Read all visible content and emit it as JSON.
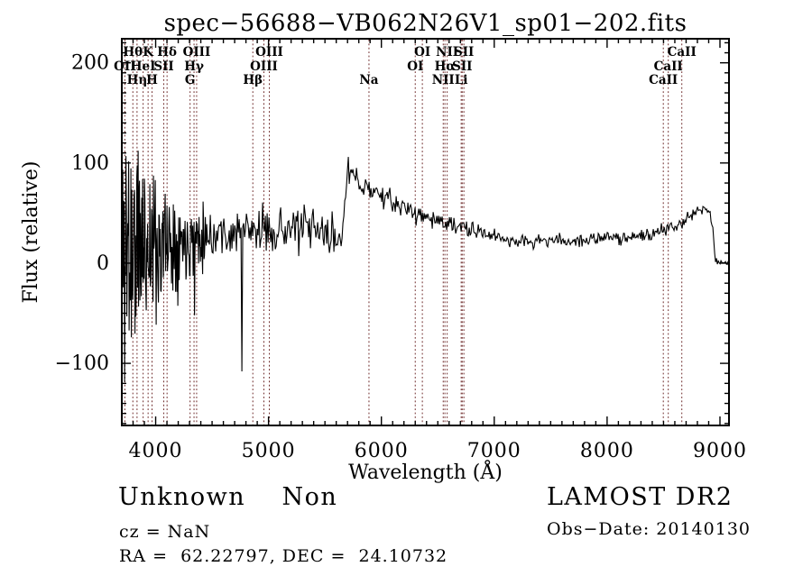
{
  "title": "spec−56688−VB062N26V1_sp01−202.fits",
  "footer": {
    "class_label": "Unknown    Non",
    "cz": "cz = NaN",
    "radec": "RA =  62.22797, DEC =  24.10732",
    "survey": "LAMOST DR2",
    "obs_date": "Obs−Date: 20140130"
  },
  "chart_data": {
    "type": "line",
    "title": "spec−56688−VB062N26V1_sp01−202.fits",
    "xlabel": "Wavelength (Å)",
    "ylabel": "Flux (relative)",
    "xlim": [
      3700,
      9080
    ],
    "ylim": [
      -162,
      224
    ],
    "x_ticks": [
      4000,
      5000,
      6000,
      7000,
      8000,
      9000
    ],
    "y_ticks": [
      -100,
      0,
      100,
      200
    ],
    "x_minor_step": 100,
    "y_minor_step": 10,
    "grid": false,
    "line_color": "#000000",
    "marker_line_color": "#6e2a2a",
    "spectral_lines": [
      {
        "label": "Hθ",
        "wavelength": 3798,
        "row": 1
      },
      {
        "label": "K",
        "wavelength": 3933,
        "row": 1
      },
      {
        "label": "Hδ",
        "wavelength": 4101,
        "row": 1
      },
      {
        "label": "OIII",
        "wavelength": 4363,
        "row": 1
      },
      {
        "label": "OIII",
        "wavelength": 5007,
        "row": 1
      },
      {
        "label": "OI",
        "wavelength": 6363,
        "row": 1
      },
      {
        "label": "NII",
        "wavelength": 6583,
        "row": 1
      },
      {
        "label": "SII",
        "wavelength": 6731,
        "row": 1
      },
      {
        "label": "CaII",
        "wavelength": 8662,
        "row": 1
      },
      {
        "label": "OII",
        "wavelength": 3727,
        "row": 2
      },
      {
        "label": "HeI",
        "wavelength": 3889,
        "row": 2
      },
      {
        "label": "SII",
        "wavelength": 4072,
        "row": 2
      },
      {
        "label": "Hγ",
        "wavelength": 4340,
        "row": 2
      },
      {
        "label": "OIII",
        "wavelength": 4959,
        "row": 2
      },
      {
        "label": "OI",
        "wavelength": 6300,
        "row": 2
      },
      {
        "label": "Hα",
        "wavelength": 6563,
        "row": 2
      },
      {
        "label": "SII",
        "wavelength": 6716,
        "row": 2
      },
      {
        "label": "CaII",
        "wavelength": 8542,
        "row": 2
      },
      {
        "label": "Hη",
        "wavelength": 3835,
        "row": 3
      },
      {
        "label": "H",
        "wavelength": 3968,
        "row": 3
      },
      {
        "label": "G",
        "wavelength": 4305,
        "row": 3
      },
      {
        "label": "Hβ",
        "wavelength": 4861,
        "row": 3
      },
      {
        "label": "Na",
        "wavelength": 5890,
        "row": 3
      },
      {
        "label": "NII",
        "wavelength": 6548,
        "row": 3
      },
      {
        "label": "Li",
        "wavelength": 6707,
        "row": 3
      },
      {
        "label": "CaII",
        "wavelength": 8498,
        "row": 3
      }
    ],
    "baseline": [
      [
        3700,
        20
      ],
      [
        3800,
        15
      ],
      [
        3900,
        20
      ],
      [
        4000,
        18
      ],
      [
        4100,
        22
      ],
      [
        4200,
        22
      ],
      [
        4300,
        26
      ],
      [
        4400,
        28
      ],
      [
        4500,
        30
      ],
      [
        4700,
        30
      ],
      [
        4900,
        32
      ],
      [
        5100,
        34
      ],
      [
        5300,
        34
      ],
      [
        5500,
        30
      ],
      [
        5620,
        22
      ],
      [
        5660,
        45
      ],
      [
        5700,
        82
      ],
      [
        5740,
        88
      ],
      [
        5800,
        80
      ],
      [
        5900,
        74
      ],
      [
        6000,
        68
      ],
      [
        6100,
        60
      ],
      [
        6200,
        55
      ],
      [
        6300,
        50
      ],
      [
        6400,
        46
      ],
      [
        6500,
        43
      ],
      [
        6600,
        38
      ],
      [
        6700,
        36
      ],
      [
        6800,
        32
      ],
      [
        6900,
        30
      ],
      [
        7000,
        27
      ],
      [
        7100,
        24
      ],
      [
        7200,
        22
      ],
      [
        7300,
        21
      ],
      [
        7500,
        23
      ],
      [
        7700,
        22
      ],
      [
        7900,
        24
      ],
      [
        8100,
        26
      ],
      [
        8300,
        27
      ],
      [
        8450,
        30
      ],
      [
        8550,
        34
      ],
      [
        8650,
        40
      ],
      [
        8750,
        48
      ],
      [
        8830,
        54
      ],
      [
        8880,
        56
      ],
      [
        8910,
        52
      ],
      [
        8940,
        30
      ],
      [
        8960,
        2
      ],
      [
        9080,
        0
      ]
    ],
    "noise_amplitude": [
      [
        3700,
        170
      ],
      [
        3750,
        175
      ],
      [
        3800,
        150
      ],
      [
        3850,
        130
      ],
      [
        3900,
        110
      ],
      [
        3950,
        95
      ],
      [
        4000,
        80
      ],
      [
        4100,
        62
      ],
      [
        4200,
        50
      ],
      [
        4300,
        42
      ],
      [
        4400,
        35
      ],
      [
        4500,
        31
      ],
      [
        4700,
        27
      ],
      [
        4900,
        24
      ],
      [
        5100,
        23
      ],
      [
        5300,
        24
      ],
      [
        5500,
        26
      ],
      [
        5640,
        20
      ],
      [
        5700,
        14
      ],
      [
        5900,
        12
      ],
      [
        6200,
        11
      ],
      [
        6500,
        10
      ],
      [
        6800,
        9
      ],
      [
        7100,
        8
      ],
      [
        7500,
        7
      ],
      [
        8000,
        7
      ],
      [
        8500,
        8
      ],
      [
        8800,
        7
      ],
      [
        8950,
        4
      ],
      [
        9080,
        2
      ]
    ],
    "spikes": [
      {
        "wavelength": 4763,
        "flux": -108
      },
      {
        "wavelength": 4345,
        "flux": -52
      },
      {
        "wavelength": 5706,
        "flux": 106
      }
    ],
    "seed": 11
  }
}
